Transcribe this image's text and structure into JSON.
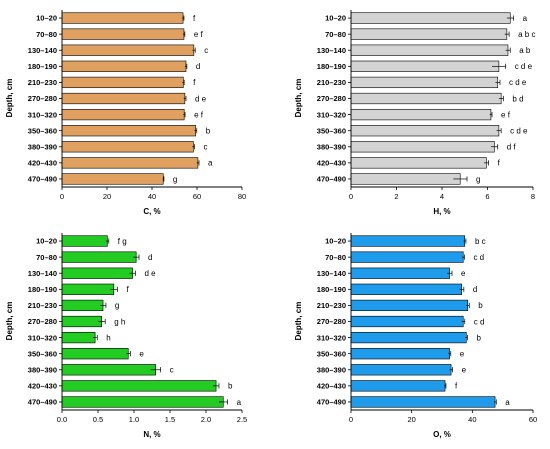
{
  "chart_data": [
    {
      "type": "bar",
      "orientation": "horizontal",
      "xlabel": "C, %",
      "ylabel": "Depth, cm",
      "xlim": [
        0,
        80
      ],
      "xticks": [
        "0",
        "20",
        "40",
        "60",
        "80"
      ],
      "color": "#E0A060",
      "categories": [
        "10–20",
        "70–80",
        "130–140",
        "180–190",
        "210–230",
        "270–280",
        "310–320",
        "350–360",
        "380–390",
        "420–430",
        "470–490"
      ],
      "values": [
        53.8,
        54.2,
        58.6,
        55.1,
        53.9,
        54.6,
        54.3,
        59.4,
        58.4,
        60.4,
        45.0
      ],
      "errors": [
        0.4,
        0.4,
        0.6,
        0.4,
        0.4,
        0.5,
        0.4,
        0.5,
        0.5,
        0.5,
        0.3
      ],
      "letters": [
        "f",
        "e f",
        "c",
        "d",
        "f",
        "d e",
        "e f",
        "b",
        "c",
        "a",
        "g"
      ]
    },
    {
      "type": "bar",
      "orientation": "horizontal",
      "xlabel": "H, %",
      "ylabel": "Depth, cm",
      "xlim": [
        0,
        8
      ],
      "xticks": [
        "0",
        "2",
        "4",
        "6",
        "8"
      ],
      "color": "#D3D3D3",
      "categories": [
        "10–20",
        "70–80",
        "130–140",
        "180–190",
        "210–230",
        "270–280",
        "310–320",
        "350–360",
        "380–390",
        "420–430",
        "470–490"
      ],
      "values": [
        7.0,
        6.85,
        6.9,
        6.5,
        6.45,
        6.6,
        6.15,
        6.5,
        6.3,
        5.95,
        4.8
      ],
      "errors": [
        0.15,
        0.1,
        0.1,
        0.3,
        0.1,
        0.1,
        0.05,
        0.1,
        0.15,
        0.1,
        0.3
      ],
      "letters": [
        "a",
        "a b c",
        "a b",
        "c d e",
        "c d e",
        "b d",
        "e f",
        "c d e",
        "d f",
        "f",
        "g"
      ]
    },
    {
      "type": "bar",
      "orientation": "horizontal",
      "xlabel": "N, %",
      "ylabel": "Depth, cm",
      "xlim": [
        0,
        2.5
      ],
      "xticks": [
        "0.0",
        "0.5",
        "1.0",
        "1.5",
        "2.0",
        "2.5"
      ],
      "color": "#22CC22",
      "categories": [
        "10–20",
        "70–80",
        "130–140",
        "180–190",
        "210–230",
        "270–280",
        "310–320",
        "350–360",
        "380–390",
        "420–430",
        "470–490"
      ],
      "values": [
        0.63,
        1.03,
        0.98,
        0.72,
        0.57,
        0.55,
        0.46,
        0.92,
        1.3,
        2.14,
        2.24
      ],
      "errors": [
        0.02,
        0.04,
        0.04,
        0.05,
        0.04,
        0.05,
        0.03,
        0.03,
        0.07,
        0.04,
        0.06
      ],
      "letters": [
        "f g",
        "d",
        "d e",
        "f",
        "g",
        "g h",
        "h",
        "e",
        "c",
        "b",
        "a"
      ]
    },
    {
      "type": "bar",
      "orientation": "horizontal",
      "xlabel": "O, %",
      "ylabel": "Depth, cm",
      "xlim": [
        0,
        60
      ],
      "xticks": [
        "0",
        "20",
        "40",
        "60"
      ],
      "color": "#1E9CEB",
      "categories": [
        "10–20",
        "70–80",
        "130–140",
        "180–190",
        "210–230",
        "270–280",
        "310–320",
        "350–360",
        "380–390",
        "420–430",
        "470–490"
      ],
      "values": [
        37.5,
        37.0,
        32.5,
        36.5,
        38.5,
        37.0,
        38.0,
        32.5,
        33.0,
        31.0,
        47.5
      ],
      "errors": [
        0.4,
        0.4,
        0.8,
        0.7,
        0.5,
        0.5,
        0.4,
        0.4,
        0.5,
        0.3,
        0.4
      ],
      "letters": [
        "b c",
        "c d",
        "e",
        "d",
        "b",
        "c d",
        "b",
        "e",
        "e",
        "f",
        "a"
      ]
    }
  ]
}
